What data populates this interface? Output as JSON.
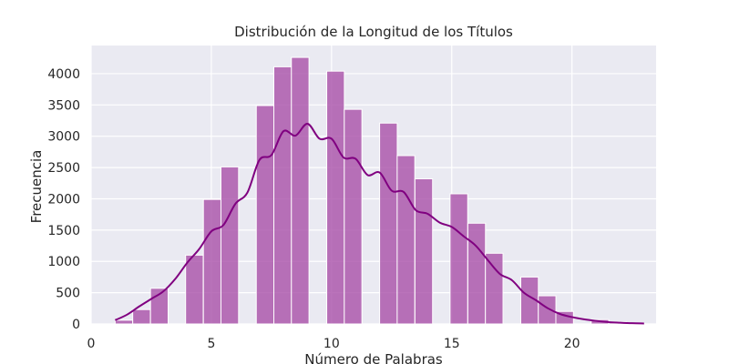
{
  "chart_data": {
    "type": "bar",
    "title": "Distribución de la Longitud de los Títulos",
    "xlabel": "Número de Palabras",
    "ylabel": "Frecuencia",
    "xlim": [
      0,
      23.5
    ],
    "ylim": [
      0,
      4450
    ],
    "x_ticks": [
      0,
      5,
      10,
      15,
      20
    ],
    "y_ticks": [
      0,
      500,
      1000,
      1500,
      2000,
      2500,
      3000,
      3500,
      4000
    ],
    "grid": true,
    "bin_width": 0.733,
    "bins": [
      {
        "x0": 1.0,
        "value": 60
      },
      {
        "x0": 1.73,
        "value": 230
      },
      {
        "x0": 2.47,
        "value": 570
      },
      {
        "x0": 3.2,
        "value": 0
      },
      {
        "x0": 3.93,
        "value": 1100
      },
      {
        "x0": 4.67,
        "value": 1990
      },
      {
        "x0": 5.4,
        "value": 2510
      },
      {
        "x0": 6.13,
        "value": 0
      },
      {
        "x0": 6.87,
        "value": 3490
      },
      {
        "x0": 7.6,
        "value": 4110
      },
      {
        "x0": 8.33,
        "value": 4260
      },
      {
        "x0": 9.07,
        "value": 0
      },
      {
        "x0": 9.8,
        "value": 4040
      },
      {
        "x0": 10.53,
        "value": 3430
      },
      {
        "x0": 11.27,
        "value": 0
      },
      {
        "x0": 12.0,
        "value": 3210
      },
      {
        "x0": 12.73,
        "value": 2690
      },
      {
        "x0": 13.47,
        "value": 2320
      },
      {
        "x0": 14.2,
        "value": 0
      },
      {
        "x0": 14.93,
        "value": 2080
      },
      {
        "x0": 15.67,
        "value": 1610
      },
      {
        "x0": 16.4,
        "value": 1130
      },
      {
        "x0": 17.13,
        "value": 0
      },
      {
        "x0": 17.87,
        "value": 750
      },
      {
        "x0": 18.6,
        "value": 450
      },
      {
        "x0": 19.33,
        "value": 200
      },
      {
        "x0": 20.07,
        "value": 0
      },
      {
        "x0": 20.8,
        "value": 70
      },
      {
        "x0": 21.53,
        "value": 30
      },
      {
        "x0": 22.27,
        "value": 10
      }
    ],
    "kde": {
      "x": [
        1.0,
        1.5,
        2.0,
        2.5,
        3.0,
        3.5,
        4.0,
        4.5,
        5.0,
        5.5,
        6.0,
        6.5,
        7.0,
        7.5,
        8.0,
        8.5,
        9.0,
        9.5,
        10.0,
        10.5,
        11.0,
        11.5,
        12.0,
        12.5,
        13.0,
        13.5,
        14.0,
        14.5,
        15.0,
        15.5,
        16.0,
        16.5,
        17.0,
        17.5,
        18.0,
        18.5,
        19.0,
        19.5,
        20.0,
        20.5,
        21.0,
        21.5,
        22.0,
        22.5,
        23.0
      ],
      "y": [
        60,
        150,
        280,
        400,
        520,
        720,
        980,
        1200,
        1480,
        1580,
        1920,
        2100,
        2620,
        2700,
        3080,
        3010,
        3200,
        2960,
        2960,
        2660,
        2640,
        2380,
        2420,
        2130,
        2110,
        1820,
        1760,
        1620,
        1550,
        1400,
        1250,
        1020,
        800,
        700,
        500,
        380,
        250,
        160,
        110,
        75,
        50,
        30,
        20,
        12,
        8
      ],
      "color": "#800080"
    },
    "bar_color": "#a64ca6",
    "background_color": "#eaeaf2"
  }
}
